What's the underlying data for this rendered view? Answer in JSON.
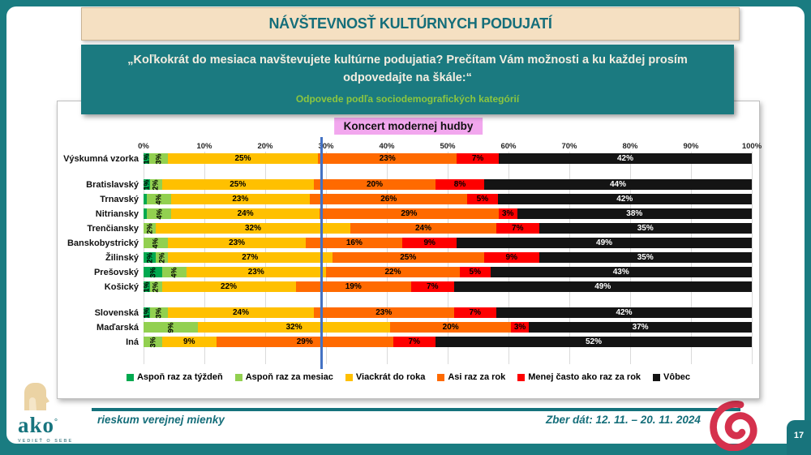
{
  "header": {
    "title": "NÁVŠTEVNOSŤ KULTÚRNYCH PODUJATÍ"
  },
  "question_box": {
    "question": "„Koľkokrát do mesiaca navštevujete kultúrne podujatia? Prečítam Vám možnosti a ku každej prosím odpovedajte na škále:“",
    "subtitle": "Odpovede podľa sociodemografických kategórií"
  },
  "chart_data": {
    "type": "bar",
    "orientation": "horizontal-stacked",
    "title": "Koncert modernej hudby",
    "axis": {
      "min": 0,
      "max": 100,
      "ticks": [
        "0%",
        "10%",
        "20%",
        "30%",
        "40%",
        "50%",
        "60%",
        "70%",
        "80%",
        "90%",
        "100%"
      ]
    },
    "reference_line": {
      "x": 29,
      "color": "#4472C4"
    },
    "legend": [
      {
        "label": "Aspoň raz za týždeň",
        "color": "#00A94F"
      },
      {
        "label": "Aspoň raz za mesiac",
        "color": "#92D050"
      },
      {
        "label": "Viackrát do roka",
        "color": "#FFC000"
      },
      {
        "label": "Asi raz za rok",
        "color": "#FF6A00"
      },
      {
        "label": "Menej často ako raz za rok",
        "color": "#FE0000"
      },
      {
        "label": "Vôbec",
        "color": "#141414"
      }
    ],
    "groups": [
      {
        "rows": [
          {
            "label": "Výskumná vzorka",
            "values": [
              1,
              3,
              25,
              23,
              7,
              42
            ],
            "labels": [
              "1%",
              "3%",
              "25%",
              "23%",
              "7%",
              "42%"
            ]
          }
        ]
      },
      {
        "rows": [
          {
            "label": "Bratislavský",
            "values": [
              1,
              2,
              25,
              20,
              8,
              44
            ],
            "labels": [
              "1%",
              "2%",
              "25%",
              "20%",
              "8%",
              "44%"
            ]
          },
          {
            "label": "Trnavský",
            "values": [
              0.5,
              4,
              23,
              26,
              5,
              42
            ],
            "labels": [
              "",
              "4%",
              "23%",
              "26%",
              "5%",
              "42%"
            ]
          },
          {
            "label": "Nitriansky",
            "values": [
              0.5,
              4,
              24,
              29,
              3,
              38
            ],
            "labels": [
              "",
              "4%",
              "24%",
              "29%",
              "3%",
              "38%"
            ]
          },
          {
            "label": "Trenčiansky",
            "values": [
              0,
              2,
              32,
              24,
              7,
              35
            ],
            "labels": [
              "",
              "2%",
              "32%",
              "24%",
              "7%",
              "35%"
            ]
          },
          {
            "label": "Banskobystrický",
            "values": [
              0,
              4,
              23,
              16,
              9,
              49
            ],
            "labels": [
              "",
              "4%",
              "23%",
              "16%",
              "9%",
              "49%"
            ]
          },
          {
            "label": "Žilinský",
            "values": [
              2,
              2,
              27,
              25,
              9,
              35
            ],
            "labels": [
              "2%",
              "2%",
              "27%",
              "25%",
              "9%",
              "35%"
            ]
          },
          {
            "label": "Prešovský",
            "values": [
              3,
              4,
              23,
              22,
              5,
              43
            ],
            "labels": [
              "3%",
              "4%",
              "23%",
              "22%",
              "5%",
              "43%"
            ]
          },
          {
            "label": "Košický",
            "values": [
              1,
              2,
              22,
              19,
              7,
              49
            ],
            "labels": [
              "1%",
              "2%",
              "22%",
              "19%",
              "7%",
              "49%"
            ]
          }
        ]
      },
      {
        "rows": [
          {
            "label": "Slovenská",
            "values": [
              1,
              3,
              24,
              23,
              7,
              42
            ],
            "labels": [
              "1%",
              "3%",
              "24%",
              "23%",
              "7%",
              "42%"
            ]
          },
          {
            "label": "Maďarská",
            "values": [
              0,
              9,
              32,
              20,
              3,
              37
            ],
            "labels": [
              "",
              "9%",
              "32%",
              "20%",
              "3%",
              "37%"
            ]
          },
          {
            "label": "Iná",
            "values": [
              0,
              3,
              9,
              29,
              7,
              52
            ],
            "labels": [
              "",
              "3%",
              "9%",
              "29%",
              "7%",
              "52%"
            ]
          }
        ]
      }
    ]
  },
  "footer": {
    "logo_word": "ako",
    "logo_tagline": "VEDIEŤ O SEBE",
    "left_text": "rieskum verejnej mienky",
    "right_text": "Zber dát: 12. 11. – 20. 11. 2024",
    "page_number": "17"
  },
  "colors": {
    "brand_teal": "#1B7A80",
    "header_beige": "#F5E0C2",
    "chart_title_pink": "#F2A7EE",
    "spiral_red": "#D5314D"
  }
}
